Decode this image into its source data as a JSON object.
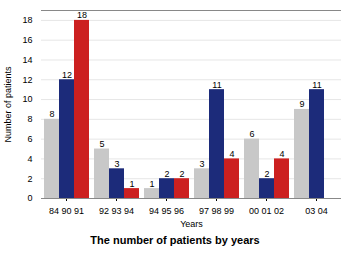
{
  "chart_data": {
    "type": "bar",
    "title": "The number of patients by years",
    "xlabel": "Years",
    "ylabel": "Number of patients",
    "categories": [
      "84 90 91",
      "92 93 94",
      "94 95 96",
      "97 98 99",
      "00 01 02",
      "03 04"
    ],
    "series": [
      {
        "color": "#c8c8c8",
        "values": [
          8,
          5,
          1,
          3,
          6,
          9
        ]
      },
      {
        "color": "#1c2b7a",
        "values": [
          12,
          3,
          2,
          11,
          2,
          11
        ]
      },
      {
        "color": "#cc2020",
        "values": [
          18,
          1,
          2,
          4,
          4,
          0
        ]
      }
    ],
    "ylim": [
      0,
      19
    ],
    "yticks": [
      0,
      2,
      4,
      6,
      8,
      10,
      12,
      14,
      16,
      18
    ],
    "grid": true,
    "data_labels": true
  }
}
